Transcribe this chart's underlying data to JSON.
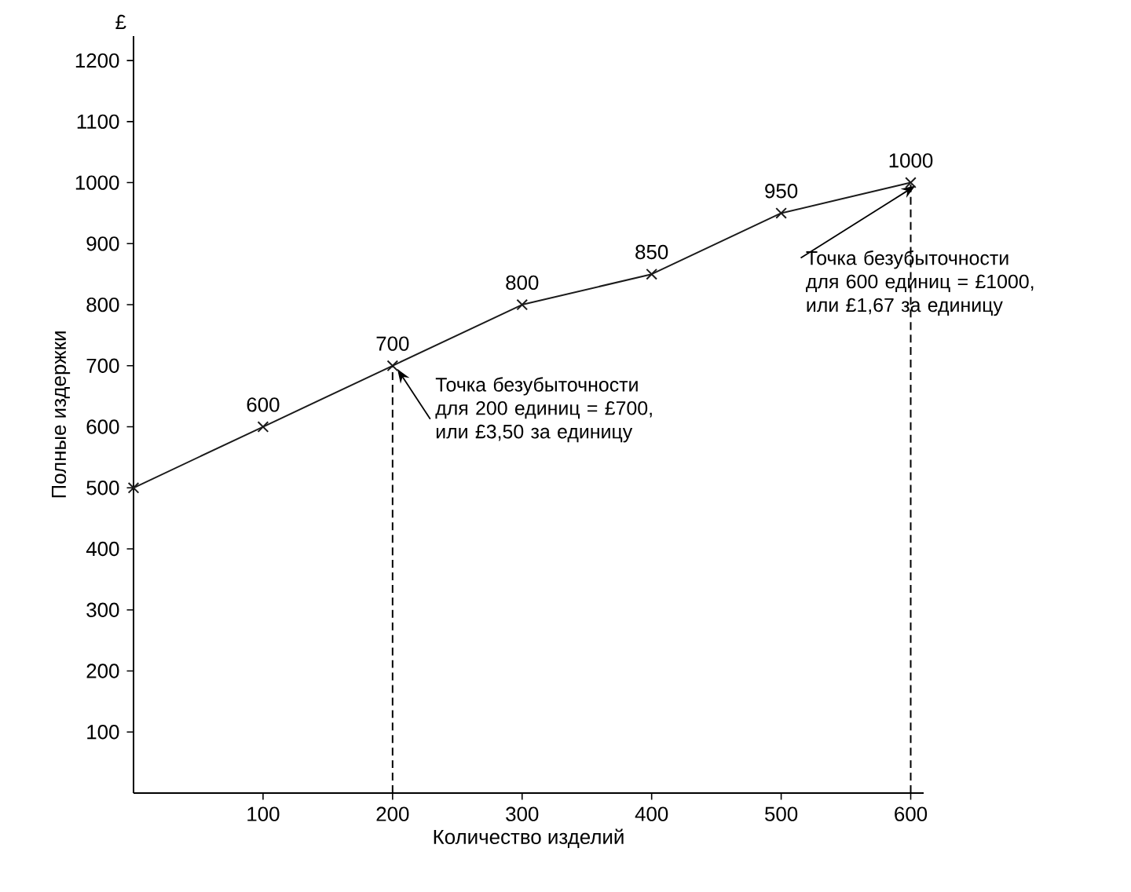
{
  "chart_data": {
    "type": "line",
    "xlabel": "Количество изделий",
    "ylabel": "Полные издержки",
    "x": [
      0,
      100,
      200,
      300,
      400,
      500,
      600
    ],
    "series": [
      {
        "color": "#1a1a1a",
        "values": [
          500,
          600,
          700,
          800,
          850,
          950,
          1000
        ],
        "value_labels": [
          null,
          "600",
          "700",
          "800",
          "850",
          "950",
          "1000"
        ]
      }
    ],
    "xlim": [
      0,
      610
    ],
    "ylim": [
      0,
      1240
    ],
    "xticks": [
      100,
      200,
      300,
      400,
      500,
      600
    ],
    "yticks": [
      100,
      200,
      300,
      400,
      500,
      600,
      700,
      800,
      900,
      1000,
      1100,
      1200
    ],
    "marker": "cross",
    "line_style": "solid",
    "ref_lines": [
      {
        "axis": "x",
        "value": 200,
        "line_style": "dashed"
      },
      {
        "axis": "x",
        "value": 600,
        "line_style": "dashed"
      }
    ],
    "annotations": [
      "£",
      {
        "text": "Точка безубыточности для 200 единиц = £700, или £3,50 за единицу",
        "x": 200,
        "y": 700
      },
      {
        "text": "Точка безубыточности для 600 единиц = £1000, или £1,67 за единицу",
        "x": 600,
        "y": 1000
      }
    ]
  }
}
